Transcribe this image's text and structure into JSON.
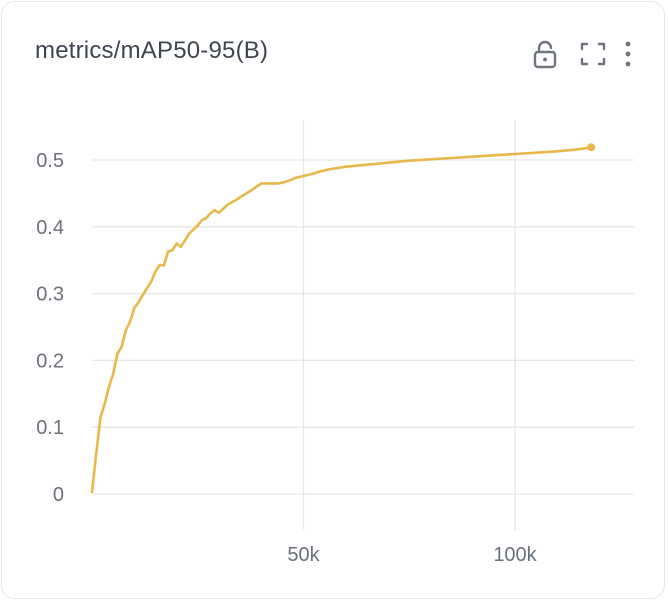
{
  "card": {
    "title": "metrics/mAP50-95(B)",
    "icons": [
      "lock-open-icon",
      "fullscreen-icon",
      "more-vertical-icon"
    ]
  },
  "colors": {
    "line": "#e8b84a",
    "grid": "#e6e6e6",
    "text": "#6b717a",
    "title": "#3f4650",
    "icon": "#6e7580"
  },
  "chart_data": {
    "type": "line",
    "title": "metrics/mAP50-95(B)",
    "xlabel": "",
    "ylabel": "",
    "xlim": [
      0,
      123000
    ],
    "ylim": [
      0,
      0.52
    ],
    "x_ticks": [
      50000,
      100000
    ],
    "x_tick_labels": [
      "50k",
      "100k"
    ],
    "y_ticks": [
      0,
      0.1,
      0.2,
      0.3,
      0.4,
      0.5
    ],
    "y_tick_labels": [
      "0",
      "0.1",
      "0.2",
      "0.3",
      "0.4",
      "0.5"
    ],
    "grid": true,
    "series": [
      {
        "name": "",
        "x": [
          0,
          1000,
          2000,
          3000,
          4000,
          5000,
          6000,
          7000,
          8000,
          9000,
          10000,
          11000,
          12000,
          13000,
          14000,
          15000,
          16000,
          17000,
          18000,
          19000,
          20000,
          21000,
          22000,
          23000,
          24000,
          25000,
          26000,
          27000,
          28000,
          29000,
          30000,
          32000,
          34000,
          35000,
          36000,
          37000,
          38000,
          40000,
          42000,
          44000,
          45000,
          47000,
          48000,
          50000,
          52000,
          54000,
          56000,
          60000,
          65000,
          70000,
          75000,
          80000,
          85000,
          90000,
          95000,
          100000,
          105000,
          110000,
          115000,
          118000
        ],
        "y": [
          0.003,
          0.06,
          0.115,
          0.135,
          0.16,
          0.18,
          0.21,
          0.22,
          0.245,
          0.258,
          0.278,
          0.287,
          0.298,
          0.308,
          0.318,
          0.333,
          0.343,
          0.342,
          0.363,
          0.365,
          0.375,
          0.37,
          0.38,
          0.39,
          0.396,
          0.402,
          0.41,
          0.413,
          0.42,
          0.425,
          0.421,
          0.433,
          0.44,
          0.444,
          0.448,
          0.452,
          0.456,
          0.465,
          0.465,
          0.465,
          0.466,
          0.47,
          0.473,
          0.476,
          0.479,
          0.483,
          0.486,
          0.49,
          0.493,
          0.496,
          0.499,
          0.501,
          0.503,
          0.505,
          0.507,
          0.509,
          0.511,
          0.513,
          0.516,
          0.519
        ]
      }
    ]
  }
}
